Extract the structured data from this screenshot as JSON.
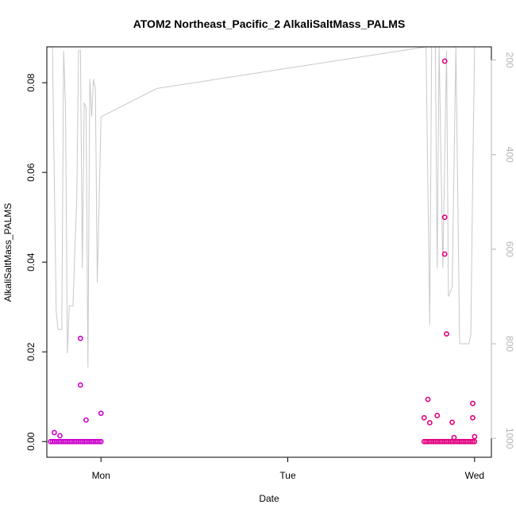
{
  "chart_data": {
    "type": "scatter",
    "title": "ATOM2 Northeast_Pacific_2 AlkaliSaltMass_PALMS",
    "xlabel": "Date",
    "ylabel": "AlkaliSaltMass_PALMS",
    "x_ticks": [
      "Mon",
      "Tue",
      "Wed"
    ],
    "x_tick_positions": [
      0,
      1,
      2
    ],
    "xlim": [
      -0.29,
      2.09
    ],
    "y_ticks": [
      "0.00",
      "0.02",
      "0.04",
      "0.06",
      "0.08"
    ],
    "y_tick_values": [
      0,
      0.02,
      0.04,
      0.06,
      0.08
    ],
    "ylim": [
      -0.0035,
      0.088
    ],
    "y2_ticks": [
      "200",
      "400",
      "600",
      "800",
      "1000"
    ],
    "y2_tick_values": [
      200,
      400,
      600,
      800,
      1000
    ],
    "y2lim": [
      1040,
      172
    ],
    "colors": {
      "points": "#e0007f",
      "points_light": "#cc00cc",
      "altitude_line": "#c8c8c8",
      "axis": "#000000",
      "axis2": "#b4b4b4"
    },
    "series": [
      {
        "kind": "points",
        "x": [
          -0.25,
          -0.22,
          -0.11,
          -0.11,
          -0.08,
          0.0,
          1.73,
          1.75,
          1.76,
          1.8,
          1.84,
          1.84,
          1.84,
          1.85,
          1.88,
          1.89,
          1.99,
          1.99,
          2.0
        ],
        "y": [
          0.002,
          0.0013,
          0.023,
          0.0126,
          0.0048,
          0.0063,
          0.0053,
          0.0094,
          0.0042,
          0.0058,
          0.0848,
          0.05,
          0.0418,
          0.024,
          0.0043,
          0.0009,
          0.0085,
          0.0053,
          0.0011
        ]
      },
      {
        "kind": "baseline_points",
        "x_range": [
          [
            -0.27,
            0.0
          ],
          [
            1.73,
            2.0
          ]
        ],
        "y": 0.0
      },
      {
        "kind": "altitude_line",
        "axis": "right",
        "x": [
          -0.26,
          -0.24,
          -0.23,
          -0.21,
          -0.2,
          -0.19,
          -0.18,
          -0.17,
          -0.15,
          -0.14,
          -0.13,
          -0.12,
          -0.11,
          -0.1,
          -0.09,
          -0.08,
          -0.07,
          -0.06,
          -0.05,
          -0.04,
          -0.03,
          -0.02,
          -0.01,
          0.0,
          1.74,
          1.76,
          1.77,
          1.79,
          1.8,
          1.81,
          1.83,
          1.85,
          1.86,
          1.88,
          1.9,
          1.92,
          1.95,
          1.97,
          1.98,
          1.99,
          2.0
        ],
        "y": [
          172,
          730,
          770,
          770,
          180,
          300,
          820,
          720,
          720,
          600,
          500,
          180,
          180,
          640,
          290,
          300,
          850,
          240,
          320,
          240,
          260,
          670,
          500,
          320,
          172,
          760,
          172,
          172,
          640,
          172,
          640,
          180,
          700,
          680,
          172,
          800,
          800,
          800,
          780,
          450,
          172
        ],
        "x_extra": [
          0.0,
          0.3,
          1.74
        ],
        "y_extra": [
          320,
          260,
          160
        ]
      }
    ]
  }
}
